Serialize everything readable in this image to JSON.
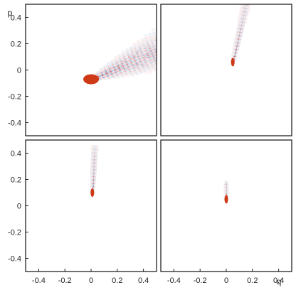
{
  "chart_data": {
    "type": "heatmap",
    "layout": "2x2 grid",
    "xlabel": "q",
    "ylabel": "p",
    "xlim": [
      -0.5,
      0.5
    ],
    "ylim": [
      -0.5,
      0.5
    ],
    "x_ticks": [
      "-0.4",
      "-0.2",
      "0",
      "0.2",
      "0.4"
    ],
    "y_ticks": [
      "-0.4",
      "-0.2",
      "0",
      "0.2",
      "0.4"
    ],
    "colormap": [
      "#1f5fa8",
      "#ffffff",
      "#c8201a"
    ],
    "accent": "#f2c400",
    "panels": [
      {
        "position": "top-left",
        "feature": "broad interference fan extending from the origin region toward the upper right",
        "peak_q": 0.0,
        "peak_p": -0.07,
        "direction": [
          0.9,
          0.38
        ],
        "length": 0.75,
        "fringe_count": 22
      },
      {
        "position": "top-right",
        "feature": "narrow banded streak rising steeply from the origin",
        "peak_q": 0.05,
        "peak_p": 0.06,
        "direction": [
          0.22,
          0.97
        ],
        "length": 0.48,
        "fringe_count": 18
      },
      {
        "position": "bottom-left",
        "feature": "thin vertical fringe column above the origin",
        "peak_q": 0.01,
        "peak_p": 0.1,
        "direction": [
          0.05,
          1.0
        ],
        "length": 0.36,
        "fringe_count": 14
      },
      {
        "position": "bottom-right",
        "feature": "small concentrated spot at the origin",
        "peak_q": 0.0,
        "peak_p": 0.05,
        "direction": [
          0.0,
          1.0
        ],
        "length": 0.14,
        "fringe_count": 6
      }
    ]
  }
}
